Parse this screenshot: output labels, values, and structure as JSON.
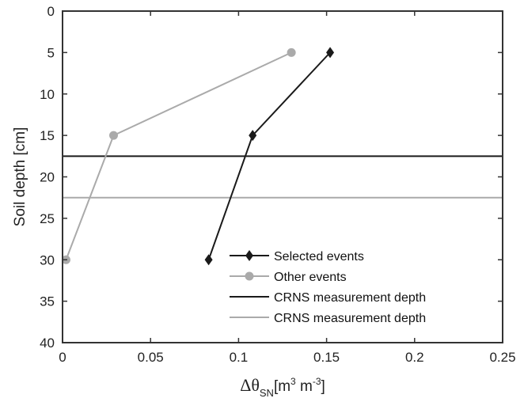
{
  "chart_data": {
    "type": "line",
    "title": "",
    "xlabel": {
      "main": "Δθ",
      "subscript": "SN",
      "units_prefix": "[m",
      "units_exp1": "3",
      "units_mid": " m",
      "units_exp2": "-3",
      "units_suffix": "]"
    },
    "ylabel": "Soil depth [cm]",
    "xlim": [
      0,
      0.25
    ],
    "ylim": [
      0,
      40
    ],
    "y_reversed": true,
    "xticks": [
      {
        "value": 0,
        "label": "0"
      },
      {
        "value": 0.05,
        "label": "0.05"
      },
      {
        "value": 0.1,
        "label": "0.1"
      },
      {
        "value": 0.15,
        "label": "0.15"
      },
      {
        "value": 0.2,
        "label": "0.2"
      },
      {
        "value": 0.25,
        "label": "0.25"
      }
    ],
    "yticks": [
      {
        "value": 0,
        "label": "0"
      },
      {
        "value": 5,
        "label": "5"
      },
      {
        "value": 10,
        "label": "10"
      },
      {
        "value": 15,
        "label": "15"
      },
      {
        "value": 20,
        "label": "20"
      },
      {
        "value": 25,
        "label": "25"
      },
      {
        "value": 30,
        "label": "30"
      },
      {
        "value": 35,
        "label": "35"
      },
      {
        "value": 40,
        "label": "40"
      }
    ],
    "grid": false,
    "legend_position": "bottom-right",
    "series": [
      {
        "name": "Selected events",
        "marker": "diamond",
        "color": "#1a1a1a",
        "points": [
          {
            "x": 0.152,
            "y": 5
          },
          {
            "x": 0.108,
            "y": 15
          },
          {
            "x": 0.083,
            "y": 30
          }
        ]
      },
      {
        "name": "Other events",
        "marker": "circle",
        "color": "#aaaaaa",
        "points": [
          {
            "x": 0.13,
            "y": 5
          },
          {
            "x": 0.029,
            "y": 15
          },
          {
            "x": 0.002,
            "y": 30
          }
        ]
      }
    ],
    "hlines": [
      {
        "name": "CRNS measurement depth",
        "y": 17.5,
        "color": "#1a1a1a"
      },
      {
        "name": "CRNS measurement depth",
        "y": 22.5,
        "color": "#aaaaaa"
      }
    ]
  }
}
